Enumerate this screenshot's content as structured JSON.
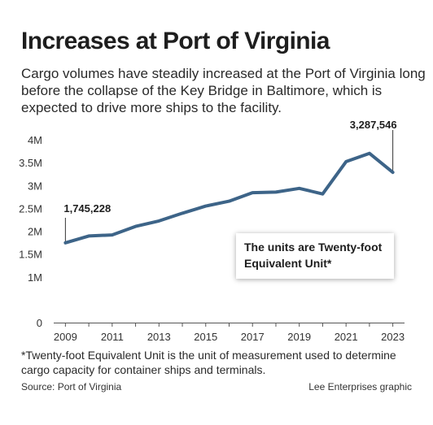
{
  "title": "Increases at Port of Virginia",
  "subtitle": "Cargo volumes have steadily increased at the Port of Virginia long before the collapse of the Key Bridge in Baltimore, which is expected to drive more ships to the facility.",
  "note": "The units are Twenty-foot Equivalent Unit*",
  "footnote": "*Twenty-foot Equivalent Unit is the unit of measurement used to determine cargo capacity for container ships and terminals.",
  "source": "Source: Port of Virginia",
  "credit": "Lee Enterprises graphic",
  "line_color": "#3d6488",
  "chart_data": {
    "type": "line",
    "title": "",
    "xlabel": "",
    "ylabel": "",
    "x": [
      2009,
      2010,
      2011,
      2012,
      2013,
      2014,
      2015,
      2016,
      2017,
      2018,
      2019,
      2020,
      2021,
      2022,
      2023
    ],
    "values": [
      1745228,
      1895000,
      1918000,
      2105000,
      2224000,
      2393000,
      2549000,
      2656000,
      2842000,
      2855000,
      2937000,
      2814000,
      3522000,
      3703000,
      3287546
    ],
    "ylim": [
      0,
      4000000
    ],
    "yticks": [
      0,
      1000000,
      1500000,
      2000000,
      2500000,
      3000000,
      3500000,
      4000000
    ],
    "yticklabels": [
      "0",
      "1M",
      "1.5M",
      "2M",
      "2.5M",
      "3M",
      "3.5M",
      "4M"
    ],
    "xticks": [
      2009,
      2011,
      2013,
      2015,
      2017,
      2019,
      2021,
      2023
    ],
    "xticklabels": [
      "2009",
      "2011",
      "2013",
      "2015",
      "2017",
      "2019",
      "2021",
      "2023"
    ],
    "annotations": [
      {
        "x": 2009,
        "label": "1,745,228"
      },
      {
        "x": 2023,
        "label": "3,287,546"
      }
    ],
    "grid": false
  }
}
